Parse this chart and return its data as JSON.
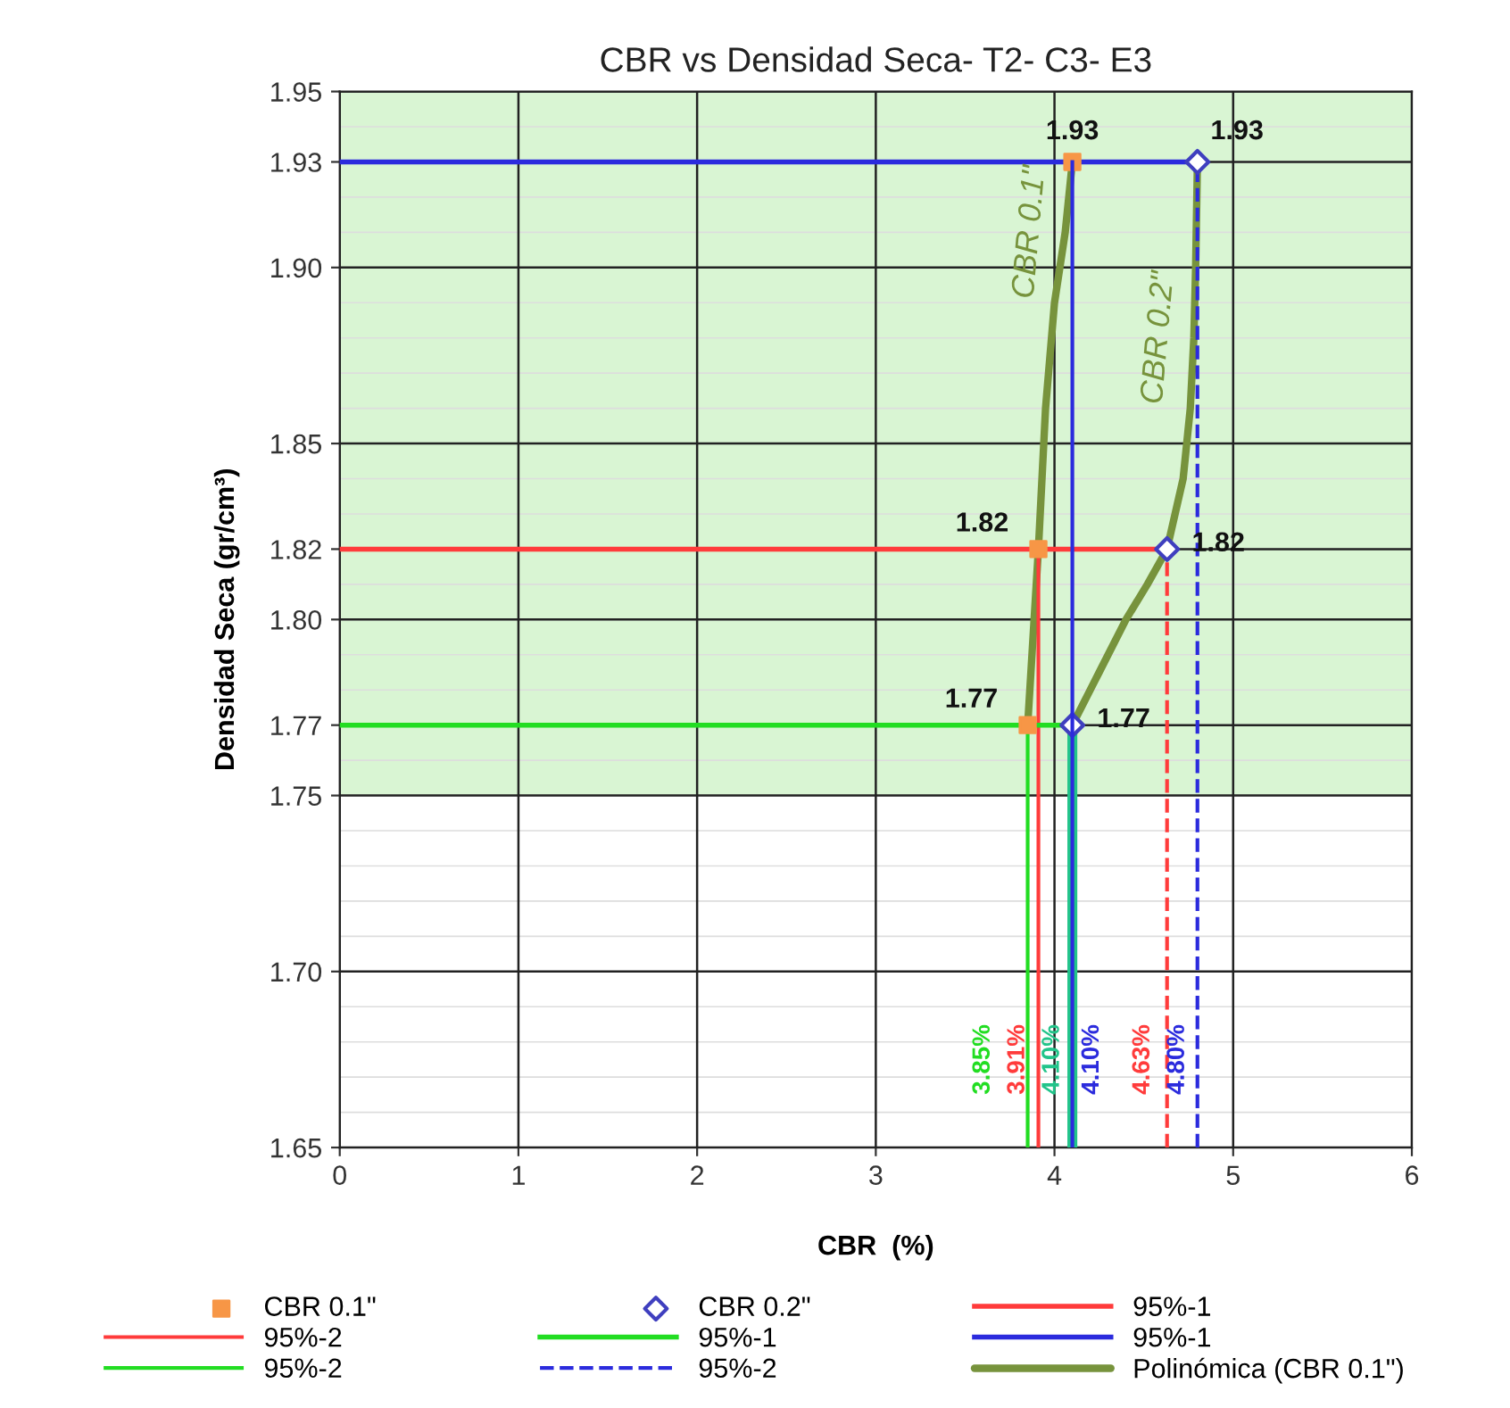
{
  "chart_data": {
    "type": "line",
    "title": "CBR vs Densidad Seca- T2- C3- E3",
    "xlabel": "CBR  (%)",
    "ylabel": "Densidad Seca (gr/cm³)",
    "xlim": [
      0,
      6
    ],
    "xticks": [
      0,
      1,
      2,
      3,
      4,
      5,
      6
    ],
    "ylim": [
      1.65,
      1.95
    ],
    "yticks": [
      {
        "value": 1.65,
        "label": "1.65"
      },
      {
        "value": 1.7,
        "label": "1.70"
      },
      {
        "value": 1.75,
        "label": "1.75"
      },
      {
        "value": 1.77,
        "label": "1.77"
      },
      {
        "value": 1.8,
        "label": "1.80"
      },
      {
        "value": 1.82,
        "label": "1.82"
      },
      {
        "value": 1.85,
        "label": "1.85"
      },
      {
        "value": 1.9,
        "label": "1.90"
      },
      {
        "value": 1.93,
        "label": "1.93"
      },
      {
        "value": 1.95,
        "label": "1.95"
      }
    ],
    "grid": true,
    "legend": "bottom",
    "bands": [
      {
        "axis": "y",
        "from": 1.75,
        "to": 1.95,
        "color": "#d9f5d3"
      }
    ],
    "annotations": [
      "CBR 0.1\"",
      "CBR 0.2\"",
      {
        "text": "3.85%",
        "x": 3.85,
        "y": 1.675
      },
      {
        "text": "3.91%",
        "x": 3.91,
        "y": 1.675
      },
      {
        "text": "4.10%",
        "x": 4.1,
        "y": 1.675
      },
      {
        "text": "4.10%",
        "x": 4.1,
        "y": 1.675
      },
      {
        "text": "4.63%",
        "x": 4.63,
        "y": 1.675
      },
      {
        "text": "4.80%",
        "x": 4.8,
        "y": 1.675
      }
    ],
    "series": [
      {
        "name": "CBR 0.1\"",
        "type": "scatter",
        "marker": "square",
        "color": "#f79646",
        "x": [
          3.85,
          3.91,
          4.1
        ],
        "values": [
          1.77,
          1.82,
          1.93
        ],
        "value_labels": [
          "1.77",
          "1.82",
          "1.93"
        ]
      },
      {
        "name": "CBR 0.2\"",
        "type": "scatter",
        "marker": "diamond",
        "color": "#3f3fbf",
        "x": [
          4.1,
          4.63,
          4.8
        ],
        "values": [
          1.77,
          1.82,
          1.93
        ],
        "value_labels": [
          "1.77",
          "1.82",
          "1.93"
        ]
      },
      {
        "name": "95%-1",
        "color": "#ff3b3b",
        "x": [
          0,
          4.63
        ],
        "values": [
          1.82,
          1.82
        ]
      },
      {
        "name": "95%-2",
        "color": "#ff3b3b",
        "x": [
          3.91,
          3.91
        ],
        "values": [
          1.65,
          1.82
        ]
      },
      {
        "name": "95%-1",
        "color": "#22dd22",
        "x": [
          0,
          4.1
        ],
        "values": [
          1.77,
          1.77
        ]
      },
      {
        "name": "95%-1",
        "color": "#2b2bdd",
        "x": [
          0,
          4.8
        ],
        "values": [
          1.93,
          1.93
        ]
      },
      {
        "name": "95%-2",
        "color": "#22dd22",
        "x": [
          3.85,
          3.85
        ],
        "values": [
          1.65,
          1.77
        ]
      },
      {
        "name": "95%-2",
        "color": "#2b2bdd",
        "line_style": "dashed",
        "x": [
          4.8,
          4.8
        ],
        "values": [
          1.65,
          1.93
        ]
      },
      {
        "name": "Polinómica (CBR 0.1\")",
        "color": "#77933c",
        "x": [
          3.85,
          3.91,
          3.95,
          4.0,
          4.06,
          4.1
        ],
        "values": [
          1.77,
          1.82,
          1.86,
          1.89,
          1.91,
          1.93
        ]
      },
      {
        "color": "#77933c",
        "x": [
          4.1,
          4.25,
          4.4,
          4.52,
          4.63,
          4.72,
          4.76,
          4.78,
          4.79,
          4.8
        ],
        "values": [
          1.77,
          1.785,
          1.8,
          1.81,
          1.82,
          1.84,
          1.86,
          1.88,
          1.9,
          1.93
        ]
      },
      {
        "color": "#ff3b3b",
        "line_style": "dashed",
        "x": [
          4.63,
          4.63
        ],
        "values": [
          1.65,
          1.82
        ]
      },
      {
        "color": "#22c48a",
        "x": [
          4.1,
          4.1
        ],
        "values": [
          1.65,
          1.77
        ]
      },
      {
        "color": "#2b2bdd",
        "x": [
          4.1,
          4.1
        ],
        "values": [
          1.65,
          1.93
        ]
      }
    ]
  }
}
